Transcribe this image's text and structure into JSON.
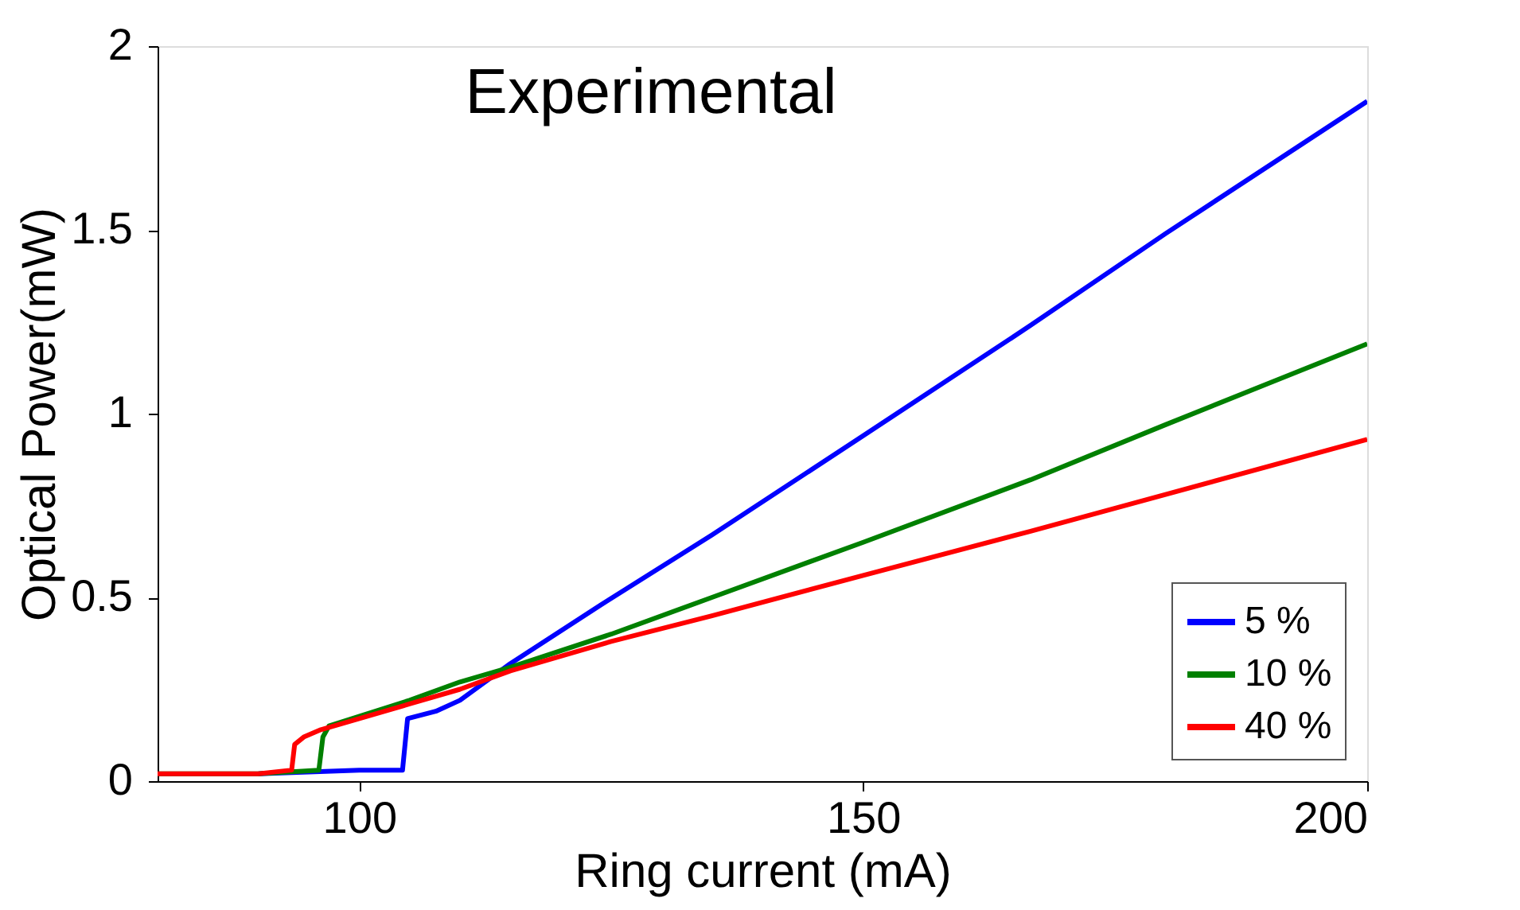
{
  "chart_data": {
    "type": "line",
    "title": "Experimental",
    "xlabel": "Ring current (mA)",
    "ylabel": "Optical Power(mW)",
    "xlim": [
      80,
      200
    ],
    "ylim": [
      0,
      2
    ],
    "xticks": [
      100,
      150,
      200
    ],
    "yticks": [
      0,
      0.5,
      1,
      1.5,
      2
    ],
    "grid": false,
    "legend": "bottom right",
    "line_style": "solid",
    "marker": "none",
    "series": [
      {
        "name": "5 %",
        "color": "#0000ff",
        "x": [
          90,
          100,
          104.3,
          104.8,
          107.6,
          110,
          115,
          124,
          135,
          150,
          166.6,
          180,
          200
        ],
        "values": [
          0.02,
          0.03,
          0.03,
          0.17,
          0.19,
          0.22,
          0.32,
          0.48,
          0.67,
          0.94,
          1.24,
          1.49,
          1.85
        ]
      },
      {
        "name": "10 %",
        "color": "#008000",
        "x": [
          80,
          90,
          96,
          96.4,
          97,
          105,
          110,
          115,
          125,
          135,
          150,
          166.6,
          180,
          190,
          200
        ],
        "values": [
          0.02,
          0.02,
          0.03,
          0.12,
          0.15,
          0.22,
          0.27,
          0.31,
          0.4,
          0.5,
          0.65,
          0.82,
          0.97,
          1.08,
          1.19
        ]
      },
      {
        "name": "40 %",
        "color": "#ff0000",
        "x": [
          80,
          90,
          93.3,
          93.6,
          94.5,
          96.2,
          105,
          110,
          115,
          125,
          135,
          150,
          166.6,
          180,
          200
        ],
        "values": [
          0.02,
          0.02,
          0.03,
          0.1,
          0.12,
          0.14,
          0.21,
          0.25,
          0.3,
          0.38,
          0.45,
          0.56,
          0.68,
          0.78,
          0.93
        ]
      }
    ]
  }
}
